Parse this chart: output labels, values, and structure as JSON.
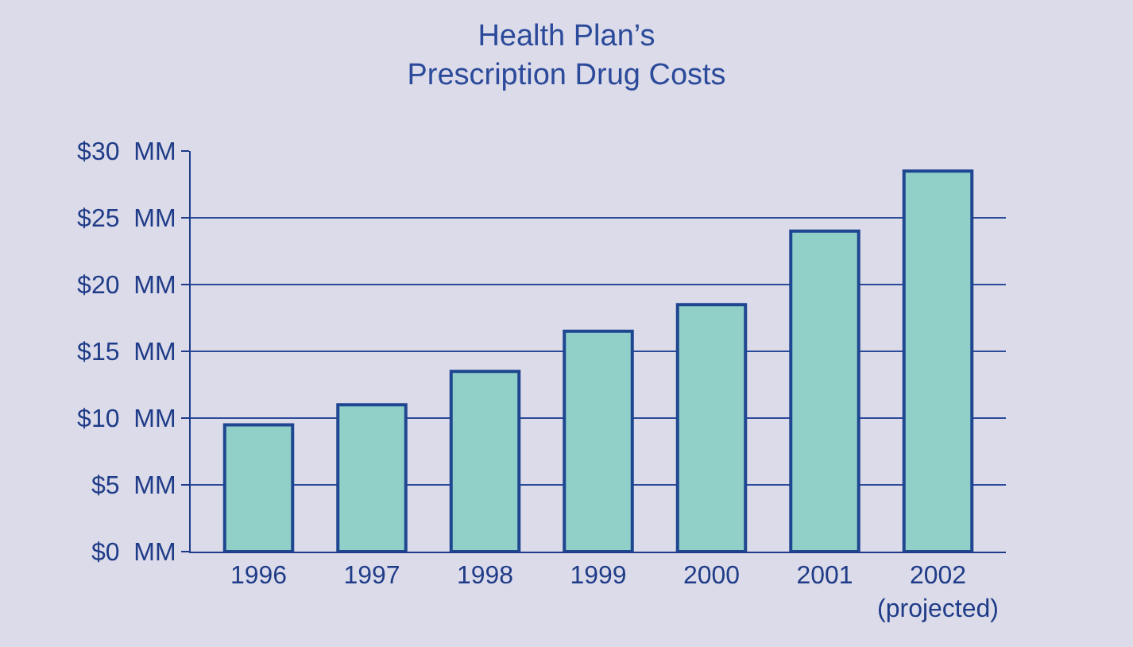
{
  "chart_data": {
    "type": "bar",
    "title": "Health Plan’s\nPrescription Drug Costs",
    "categories": [
      "1996",
      "1997",
      "1998",
      "1999",
      "2000",
      "2001",
      "2002\n(projected)"
    ],
    "values": [
      9.5,
      11,
      13.5,
      16.5,
      18.5,
      24,
      28.5
    ],
    "color": "#91cfc9",
    "ylim": [
      0,
      30
    ],
    "yticks": [
      {
        "value": 0,
        "label": "$0  MM"
      },
      {
        "value": 5,
        "label": "$5  MM"
      },
      {
        "value": 10,
        "label": "$10  MM"
      },
      {
        "value": 15,
        "label": "$15  MM"
      },
      {
        "value": 20,
        "label": "$20  MM"
      },
      {
        "value": 25,
        "label": "$25  MM"
      },
      {
        "value": 30,
        "label": "$30  MM"
      }
    ],
    "grid": "y"
  }
}
